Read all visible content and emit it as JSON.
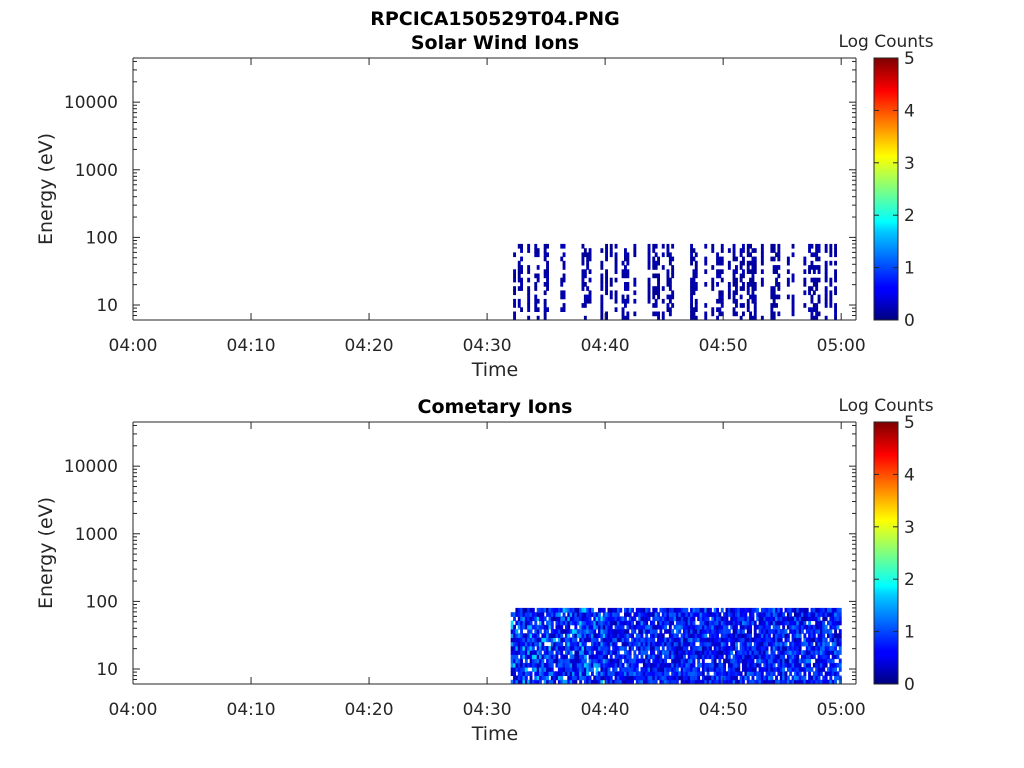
{
  "figure_title": "RPCICA150529T04.PNG",
  "chart_data": [
    {
      "type": "heatmap",
      "title": "Solar Wind Ions",
      "xlabel": "Time",
      "ylabel": "Energy (eV)",
      "x_tick_labels": [
        "04:00",
        "04:10",
        "04:20",
        "04:30",
        "04:40",
        "04:50",
        "05:00"
      ],
      "xlim": [
        "04:00",
        "05:00"
      ],
      "y_scale": "log",
      "y_tick_labels": [
        "10",
        "100",
        "1000",
        "10000"
      ],
      "ylim": [
        6,
        45000
      ],
      "colorbar": {
        "label": "Log Counts",
        "ticks": [
          "0",
          "1",
          "2",
          "3",
          "4",
          "5"
        ],
        "range": [
          0,
          5
        ],
        "colormap": "jet"
      },
      "signal": {
        "time_range": [
          "04:32",
          "05:00"
        ],
        "energy_range_eV": [
          6,
          80
        ],
        "dominant_log_counts": 0.2,
        "note_visible": "sparse low-count patches"
      }
    },
    {
      "type": "heatmap",
      "title": "Cometary Ions",
      "xlabel": "Time",
      "ylabel": "Energy (eV)",
      "x_tick_labels": [
        "04:00",
        "04:10",
        "04:20",
        "04:30",
        "04:40",
        "04:50",
        "05:00"
      ],
      "xlim": [
        "04:00",
        "05:00"
      ],
      "y_scale": "log",
      "y_tick_labels": [
        "10",
        "100",
        "1000",
        "10000"
      ],
      "ylim": [
        6,
        45000
      ],
      "colorbar": {
        "label": "Log Counts",
        "ticks": [
          "0",
          "1",
          "2",
          "3",
          "4",
          "5"
        ],
        "range": [
          0,
          5
        ],
        "colormap": "jet"
      },
      "signal": {
        "time_range": [
          "04:32",
          "05:00"
        ],
        "energy_range_eV": [
          6,
          80
        ],
        "dominant_log_counts": 1.0,
        "peak_log_counts": 1.8
      }
    }
  ]
}
